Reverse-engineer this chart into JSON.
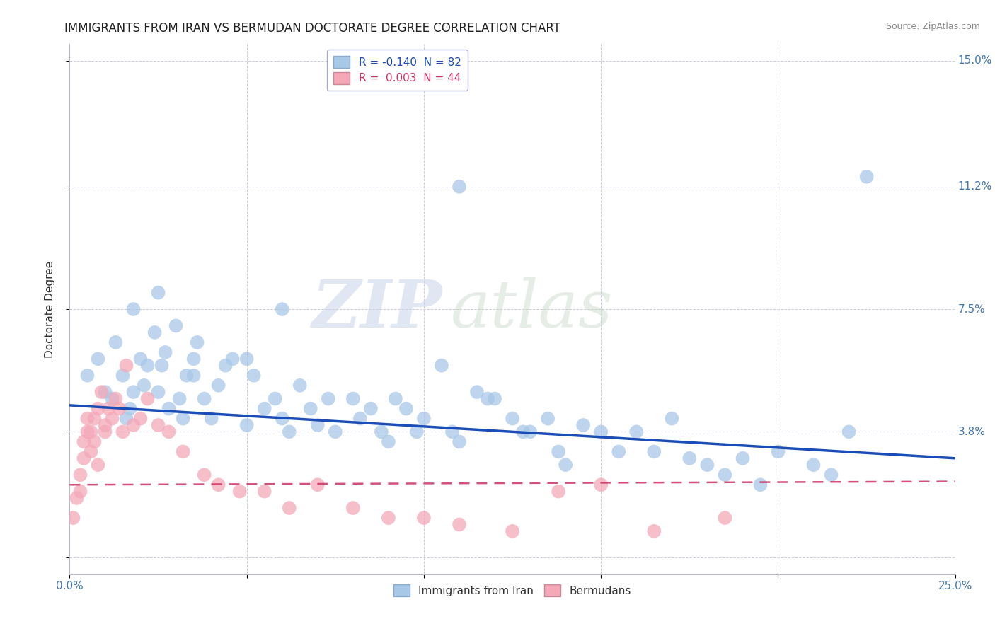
{
  "title": "IMMIGRANTS FROM IRAN VS BERMUDAN DOCTORATE DEGREE CORRELATION CHART",
  "source": "Source: ZipAtlas.com",
  "ylabel": "Doctorate Degree",
  "xlim": [
    0.0,
    0.25
  ],
  "ylim": [
    -0.005,
    0.155
  ],
  "xticks": [
    0.0,
    0.05,
    0.1,
    0.15,
    0.2,
    0.25
  ],
  "xticklabels_show": [
    "0.0%",
    "25.0%"
  ],
  "yticks": [
    0.0,
    0.038,
    0.075,
    0.112,
    0.15
  ],
  "yticklabels": [
    "",
    "3.8%",
    "7.5%",
    "11.2%",
    "15.0%"
  ],
  "legend_entries": [
    {
      "label": "R = -0.140  N = 82",
      "color": "#a8c8e8"
    },
    {
      "label": "R =  0.003  N = 44",
      "color": "#f4a8b8"
    }
  ],
  "blue_color": "#a8c8e8",
  "pink_color": "#f4a8b8",
  "blue_line_color": "#1a4db5",
  "pink_line_color": "#cc3366",
  "watermark_zip": "ZIP",
  "watermark_atlas": "atlas",
  "blue_points_x": [
    0.005,
    0.008,
    0.01,
    0.012,
    0.013,
    0.015,
    0.016,
    0.017,
    0.018,
    0.02,
    0.021,
    0.022,
    0.024,
    0.025,
    0.026,
    0.027,
    0.028,
    0.03,
    0.031,
    0.032,
    0.033,
    0.035,
    0.036,
    0.038,
    0.04,
    0.042,
    0.044,
    0.046,
    0.05,
    0.052,
    0.055,
    0.058,
    0.06,
    0.062,
    0.065,
    0.068,
    0.07,
    0.073,
    0.075,
    0.08,
    0.082,
    0.085,
    0.088,
    0.09,
    0.092,
    0.095,
    0.098,
    0.1,
    0.105,
    0.108,
    0.11,
    0.115,
    0.118,
    0.12,
    0.125,
    0.128,
    0.13,
    0.135,
    0.138,
    0.14,
    0.145,
    0.15,
    0.155,
    0.16,
    0.165,
    0.17,
    0.175,
    0.18,
    0.185,
    0.19,
    0.195,
    0.2,
    0.21,
    0.215,
    0.22,
    0.225,
    0.018,
    0.025,
    0.035,
    0.05,
    0.06,
    0.11
  ],
  "blue_points_y": [
    0.055,
    0.06,
    0.05,
    0.048,
    0.065,
    0.055,
    0.042,
    0.045,
    0.05,
    0.06,
    0.052,
    0.058,
    0.068,
    0.05,
    0.058,
    0.062,
    0.045,
    0.07,
    0.048,
    0.042,
    0.055,
    0.06,
    0.065,
    0.048,
    0.042,
    0.052,
    0.058,
    0.06,
    0.04,
    0.055,
    0.045,
    0.048,
    0.042,
    0.038,
    0.052,
    0.045,
    0.04,
    0.048,
    0.038,
    0.048,
    0.042,
    0.045,
    0.038,
    0.035,
    0.048,
    0.045,
    0.038,
    0.042,
    0.058,
    0.038,
    0.035,
    0.05,
    0.048,
    0.048,
    0.042,
    0.038,
    0.038,
    0.042,
    0.032,
    0.028,
    0.04,
    0.038,
    0.032,
    0.038,
    0.032,
    0.042,
    0.03,
    0.028,
    0.025,
    0.03,
    0.022,
    0.032,
    0.028,
    0.025,
    0.038,
    0.115,
    0.075,
    0.08,
    0.055,
    0.06,
    0.075,
    0.112
  ],
  "pink_points_x": [
    0.001,
    0.002,
    0.003,
    0.003,
    0.004,
    0.004,
    0.005,
    0.005,
    0.006,
    0.006,
    0.007,
    0.007,
    0.008,
    0.008,
    0.009,
    0.01,
    0.01,
    0.011,
    0.012,
    0.013,
    0.014,
    0.015,
    0.016,
    0.018,
    0.02,
    0.022,
    0.025,
    0.028,
    0.032,
    0.038,
    0.042,
    0.048,
    0.055,
    0.062,
    0.07,
    0.08,
    0.09,
    0.1,
    0.11,
    0.125,
    0.138,
    0.15,
    0.165,
    0.185
  ],
  "pink_points_y": [
    0.012,
    0.018,
    0.02,
    0.025,
    0.03,
    0.035,
    0.038,
    0.042,
    0.032,
    0.038,
    0.042,
    0.035,
    0.045,
    0.028,
    0.05,
    0.04,
    0.038,
    0.045,
    0.042,
    0.048,
    0.045,
    0.038,
    0.058,
    0.04,
    0.042,
    0.048,
    0.04,
    0.038,
    0.032,
    0.025,
    0.022,
    0.02,
    0.02,
    0.015,
    0.022,
    0.015,
    0.012,
    0.012,
    0.01,
    0.008,
    0.02,
    0.022,
    0.008,
    0.012
  ],
  "blue_trend_x0": 0.0,
  "blue_trend_y0": 0.046,
  "blue_trend_x1": 0.25,
  "blue_trend_y1": 0.03,
  "pink_trend_x0": 0.0,
  "pink_trend_y0": 0.022,
  "pink_trend_x1": 0.25,
  "pink_trend_y1": 0.023,
  "title_fontsize": 12,
  "axis_label_fontsize": 11,
  "tick_fontsize": 11,
  "legend_fontsize": 11
}
